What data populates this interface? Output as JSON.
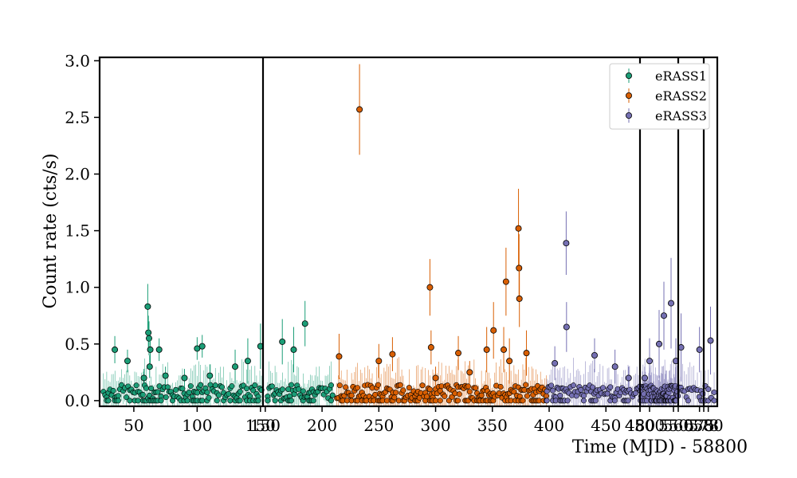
{
  "chart_data": {
    "type": "scatter",
    "xlabel": "Time (MJD) - 58800",
    "ylabel": "Count rate (cts/s)",
    "ylim": [
      -0.05,
      3.03
    ],
    "y_ticks": [
      "0.0",
      "0.5",
      "1.0",
      "1.5",
      "2.0",
      "2.5",
      "3.0"
    ],
    "legend_position": "top-right",
    "segments": [
      {
        "x_ticks": [
          "50",
          "100",
          "150"
        ],
        "x_values": [
          50,
          100,
          150
        ],
        "xlim": [
          23,
          152
        ]
      },
      {
        "x_ticks": [
          "150",
          "200",
          "250",
          "300",
          "350",
          "400",
          "450",
          "480"
        ],
        "x_values": [
          150,
          200,
          250,
          300,
          350,
          400,
          450,
          480
        ],
        "xlim": [
          148,
          480
        ]
      },
      {
        "x_ticks": [
          "480",
          "500",
          "550"
        ],
        "x_values": [
          480,
          500,
          550
        ],
        "xlim": [
          480,
          560
        ]
      },
      {
        "x_ticks": [
          "560",
          "575"
        ],
        "x_values": [
          560,
          575
        ],
        "xlim": [
          560,
          578
        ]
      },
      {
        "x_ticks": [
          "578",
          "580"
        ],
        "x_values": [
          578,
          580
        ],
        "xlim": [
          578,
          584
        ]
      }
    ],
    "series": [
      {
        "name": "eRASS1",
        "color": "#1b9e77",
        "points": [
          [
            35,
            0.45,
            0.12
          ],
          [
            45,
            0.35,
            0.1
          ],
          [
            61,
            0.83,
            0.2
          ],
          [
            61.5,
            0.6,
            0.15
          ],
          [
            62,
            0.55,
            0.15
          ],
          [
            62.5,
            0.3,
            0.1
          ],
          [
            63,
            0.45,
            0.12
          ],
          [
            70,
            0.45,
            0.1
          ],
          [
            100,
            0.46,
            0.1
          ],
          [
            104,
            0.48,
            0.1
          ],
          [
            150,
            0.48,
            0.2
          ],
          [
            165,
            0.52,
            0.2
          ],
          [
            175,
            0.45,
            0.2
          ],
          [
            185,
            0.68,
            0.2
          ],
          [
            58,
            0.2,
            0.08
          ],
          [
            75,
            0.22,
            0.08
          ],
          [
            90,
            0.2,
            0.08
          ],
          [
            110,
            0.22,
            0.1
          ],
          [
            130,
            0.3,
            0.15
          ],
          [
            140,
            0.35,
            0.2
          ]
        ]
      },
      {
        "name": "eRASS2",
        "color": "#d95f02",
        "points": [
          [
            233,
            2.57,
            0.4
          ],
          [
            295,
            1.0,
            0.25
          ],
          [
            296,
            0.47,
            0.15
          ],
          [
            362,
            1.05,
            0.3
          ],
          [
            373,
            1.52,
            0.35
          ],
          [
            373.5,
            1.17,
            0.3
          ],
          [
            373.8,
            0.9,
            0.25
          ],
          [
            351,
            0.62,
            0.25
          ],
          [
            345,
            0.45,
            0.2
          ],
          [
            320,
            0.42,
            0.15
          ],
          [
            262,
            0.41,
            0.15
          ],
          [
            215,
            0.39,
            0.2
          ],
          [
            380,
            0.42,
            0.2
          ],
          [
            300,
            0.2,
            0.1
          ],
          [
            330,
            0.25,
            0.1
          ],
          [
            250,
            0.35,
            0.15
          ],
          [
            360,
            0.45,
            0.2
          ],
          [
            365,
            0.35,
            0.2
          ]
        ]
      },
      {
        "name": "eRASS3",
        "color": "#7570b3",
        "points": [
          [
            415,
            1.39,
            0.28
          ],
          [
            415.3,
            0.65,
            0.22
          ],
          [
            405,
            0.33,
            0.15
          ],
          [
            440,
            0.4,
            0.15
          ],
          [
            458,
            0.3,
            0.15
          ],
          [
            530,
            0.75,
            0.3
          ],
          [
            545,
            0.86,
            0.4
          ],
          [
            562,
            0.47,
            0.3
          ],
          [
            575,
            0.45,
            0.2
          ],
          [
            581,
            0.53,
            0.3
          ],
          [
            500,
            0.35,
            0.2
          ],
          [
            520,
            0.5,
            0.3
          ],
          [
            470,
            0.2,
            0.1
          ],
          [
            490,
            0.2,
            0.1
          ],
          [
            555,
            0.35,
            0.2
          ]
        ]
      }
    ]
  }
}
